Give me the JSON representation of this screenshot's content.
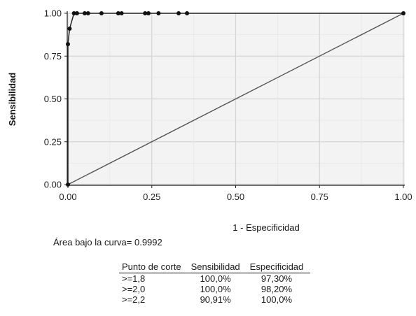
{
  "chart_data": {
    "type": "line",
    "xlabel": "1 - Especificidad",
    "ylabel": "Sensibilidad",
    "xlim": [
      0,
      1
    ],
    "ylim": [
      0,
      1
    ],
    "x_ticks": [
      "0.00",
      "0.25",
      "0.50",
      "0.75",
      "1.00"
    ],
    "y_ticks": [
      "0.00",
      "0.25",
      "0.50",
      "0.75",
      "1.00"
    ],
    "grid": true,
    "series": [
      {
        "name": "",
        "color": "#222222",
        "points": [
          [
            0.0,
            0.0
          ],
          [
            0.0,
            0.82
          ],
          [
            0.005,
            0.91
          ],
          [
            0.018,
            1.0
          ],
          [
            0.027,
            1.0
          ],
          [
            0.05,
            1.0
          ],
          [
            0.06,
            1.0
          ],
          [
            0.1,
            1.0
          ],
          [
            0.15,
            1.0
          ],
          [
            0.16,
            1.0
          ],
          [
            0.23,
            1.0
          ],
          [
            0.24,
            1.0
          ],
          [
            0.27,
            1.0
          ],
          [
            0.33,
            1.0
          ],
          [
            0.355,
            1.0
          ],
          [
            1.0,
            1.0
          ]
        ]
      },
      {
        "name": "",
        "color": "#555555",
        "points": [
          [
            0,
            0
          ],
          [
            1,
            1
          ]
        ]
      }
    ]
  },
  "auc_text": "Área bajo la curva= 0.9992",
  "table": {
    "headers": [
      "Punto de corte",
      "Sensibilidad",
      "Especificidad"
    ],
    "rows": [
      [
        ">=1,8",
        "100,0%",
        "97,30%"
      ],
      [
        ">=2,0",
        "100,0%",
        "98,20%"
      ],
      [
        ">=2,2",
        "90,91%",
        "100,0%"
      ]
    ]
  }
}
